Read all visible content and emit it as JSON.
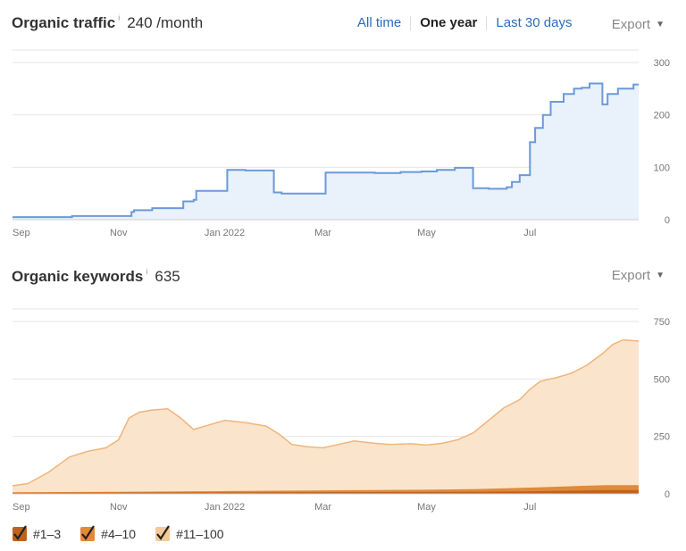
{
  "traffic": {
    "title": "Organic traffic",
    "info": "i",
    "value": "240 /month",
    "tabs": [
      {
        "label": "All time",
        "active": false
      },
      {
        "label": "One year",
        "active": true
      },
      {
        "label": "Last 30 days",
        "active": false
      }
    ],
    "export_label": "Export",
    "caret": "▼"
  },
  "keywords": {
    "title": "Organic keywords",
    "info": "i",
    "value": "635",
    "export_label": "Export",
    "caret": "▼"
  },
  "legend": [
    {
      "label": "#1–3",
      "color": "#c0621c"
    },
    {
      "label": "#4–10",
      "color": "#e08a3a"
    },
    {
      "label": "#11–100",
      "color": "#f5c89a"
    }
  ],
  "colors": {
    "traffic_line": "#6a9ad8",
    "traffic_fill": "#e9f1fb",
    "kw_11_100_line": "#f0b47c",
    "kw_11_100_fill": "#fbe4cc",
    "kw_4_10": "#e08a3a",
    "kw_1_3": "#c0621c",
    "grid": "#e6e6e6"
  },
  "chart_data": [
    {
      "type": "area",
      "title": "Organic traffic",
      "x_ticks": [
        "Sep",
        "Nov",
        "Jan 2022",
        "Mar",
        "May",
        "Jul"
      ],
      "x_tick_pos": [
        0.0,
        4.1,
        8.2,
        12.0,
        16.0,
        20.0
      ],
      "xlim": [
        0,
        24.2
      ],
      "y_ticks": [
        0,
        100,
        200,
        300
      ],
      "ylim": [
        0,
        300
      ],
      "grid": true,
      "step": true,
      "series": [
        {
          "x": [
            0,
            0.8,
            2.2,
            2.3,
            3.8,
            4.6,
            4.7,
            5.4,
            6.4,
            6.6,
            7.0,
            7.1,
            8.2,
            8.3,
            9.0,
            9.7,
            10.1,
            10.4,
            11.2,
            12.0,
            12.1,
            13.4,
            14.0,
            15.0,
            15.8,
            16.4,
            17.1,
            17.7,
            17.8,
            18.4,
            19.1,
            19.3,
            19.6,
            20.0,
            20.2,
            20.5,
            20.8,
            21.3,
            21.7,
            22.0,
            22.3,
            22.8,
            23.0,
            23.4,
            24.0,
            24.2
          ],
          "y": [
            5,
            5,
            5,
            7,
            7,
            15,
            18,
            22,
            22,
            35,
            38,
            55,
            55,
            95,
            94,
            94,
            52,
            50,
            50,
            50,
            90,
            90,
            89,
            91,
            92,
            95,
            99,
            99,
            60,
            59,
            62,
            72,
            85,
            148,
            175,
            200,
            225,
            240,
            250,
            252,
            260,
            220,
            240,
            250,
            258,
            258
          ]
        }
      ]
    },
    {
      "type": "area",
      "title": "Organic keywords",
      "x_ticks": [
        "Sep",
        "Nov",
        "Jan 2022",
        "Mar",
        "May",
        "Jul"
      ],
      "x_tick_pos": [
        0.0,
        4.1,
        8.2,
        12.0,
        16.0,
        20.0
      ],
      "xlim": [
        0,
        24.2
      ],
      "y_ticks": [
        0,
        250,
        500,
        750
      ],
      "ylim": [
        0,
        750
      ],
      "grid": true,
      "series": [
        {
          "name": "#11–100",
          "x": [
            0,
            0.6,
            1.4,
            2.2,
            2.9,
            3.6,
            4.1,
            4.5,
            4.9,
            5.4,
            6.0,
            6.5,
            7.0,
            7.6,
            8.2,
            9.0,
            9.8,
            10.3,
            10.8,
            11.4,
            12.0,
            12.6,
            13.2,
            14.0,
            14.6,
            15.4,
            16.0,
            16.6,
            17.2,
            17.8,
            18.4,
            19.0,
            19.6,
            20.0,
            20.4,
            21.0,
            21.6,
            22.2,
            22.8,
            23.2,
            23.6,
            24.2
          ],
          "y": [
            35,
            45,
            95,
            160,
            185,
            200,
            235,
            330,
            355,
            365,
            370,
            330,
            280,
            300,
            320,
            310,
            295,
            260,
            215,
            205,
            200,
            215,
            230,
            220,
            215,
            218,
            212,
            220,
            235,
            265,
            320,
            375,
            410,
            455,
            490,
            505,
            525,
            560,
            610,
            650,
            670,
            665
          ]
        },
        {
          "name": "#4–10",
          "x": [
            0,
            4.0,
            8.0,
            12.0,
            16.0,
            18.0,
            20.0,
            22.0,
            23.0,
            24.2
          ],
          "y": [
            4,
            6,
            9,
            12,
            15,
            18,
            24,
            32,
            35,
            35
          ]
        },
        {
          "name": "#1–3",
          "x": [
            0,
            4.0,
            8.0,
            12.0,
            16.0,
            18.0,
            20.0,
            22.0,
            23.0,
            24.2
          ],
          "y": [
            2,
            3,
            4,
            5,
            6,
            7,
            9,
            12,
            14,
            14
          ]
        }
      ]
    }
  ]
}
